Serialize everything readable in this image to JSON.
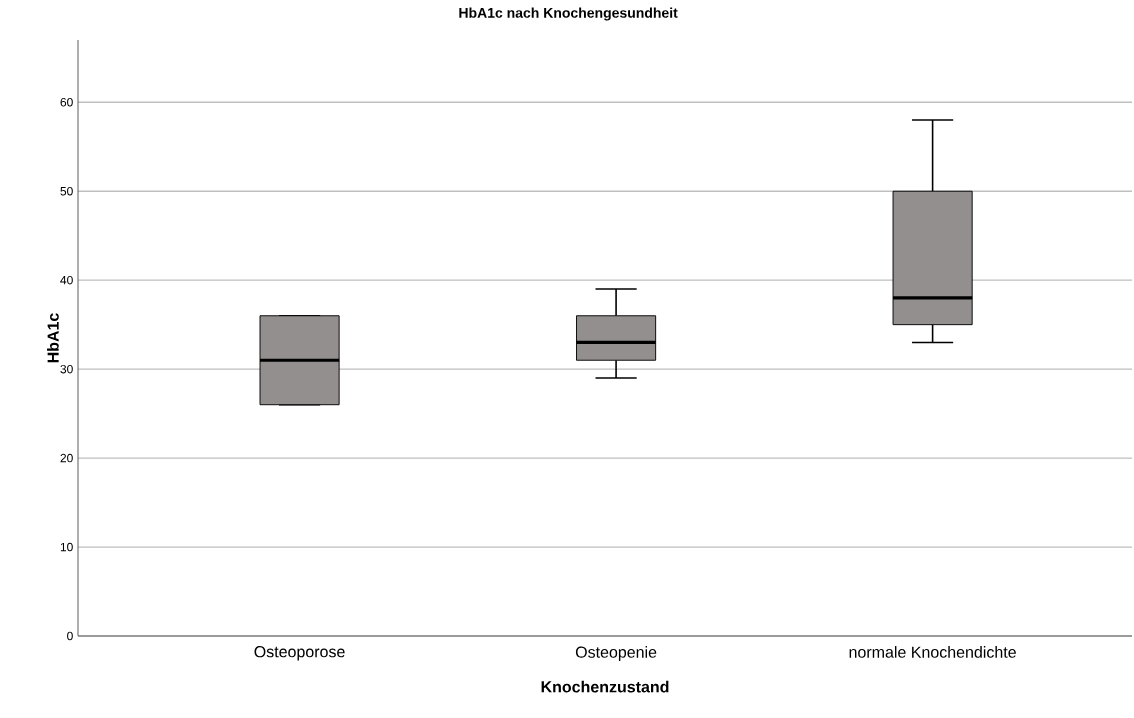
{
  "chart_data": {
    "type": "box",
    "title": "HbA1c nach Knochengesundheit",
    "xlabel": "Knochenzustand",
    "ylabel": "HbA1c",
    "categories": [
      "Osteoporose",
      "Osteopenie",
      "normale Knochendichte"
    ],
    "series": [
      {
        "color": "#948f8f",
        "boxes": [
          {
            "low": 26,
            "q1": 26,
            "median": 31,
            "q3": 36,
            "high": 36
          },
          {
            "low": 29,
            "q1": 31,
            "median": 33,
            "q3": 36,
            "high": 39
          },
          {
            "low": 33,
            "q1": 35,
            "median": 38,
            "q3": 50,
            "high": 58
          }
        ]
      }
    ],
    "ylim": [
      0,
      67
    ],
    "yticks": [
      0,
      10,
      20,
      30,
      40,
      50,
      60
    ],
    "grid": "y"
  }
}
